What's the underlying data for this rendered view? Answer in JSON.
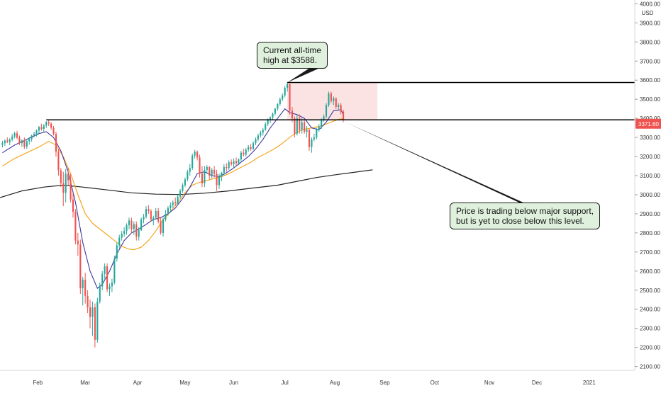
{
  "chart_data": {
    "type": "candlestick",
    "currency": "USD",
    "ylim": [
      2080,
      4020
    ],
    "y_ticks": [
      2100,
      2200,
      2300,
      2400,
      2500,
      2600,
      2700,
      2800,
      2900,
      3000,
      3100,
      3200,
      3300,
      3400,
      3500,
      3600,
      3700,
      3800,
      3900,
      4000
    ],
    "y_tick_labels": [
      "2100.00",
      "2200.00",
      "2300.00",
      "2400.00",
      "2500.00",
      "2600.00",
      "2700.00",
      "2800.00",
      "2900.00",
      "3000.00",
      "3100.00",
      "3200.00",
      "3300.00",
      "3400.00",
      "3500.00",
      "3600.00",
      "3700.00",
      "3800.00",
      "3900.00",
      "4000.00"
    ],
    "x_labels": [
      "Feb",
      "Mar",
      "Apr",
      "May",
      "Jun",
      "Jul",
      "Aug",
      "Sep",
      "Oct",
      "Nov",
      "Dec",
      "2021"
    ],
    "x_label_times": [
      21.5,
      41,
      62.5,
      82,
      102,
      123,
      143.5,
      164,
      184.5,
      207,
      226.5,
      248
    ],
    "xlim": [
      6,
      266.7
    ],
    "current_price": 3371.6,
    "current_price_label": "3371.60",
    "candles": [
      [
        7,
        3262,
        3282,
        3248,
        3270
      ],
      [
        8,
        3270,
        3290,
        3255,
        3284
      ],
      [
        9,
        3284,
        3300,
        3270,
        3276
      ],
      [
        10,
        3276,
        3296,
        3260,
        3290
      ],
      [
        11,
        3290,
        3318,
        3280,
        3305
      ],
      [
        12,
        3305,
        3330,
        3295,
        3322
      ],
      [
        13,
        3322,
        3335,
        3290,
        3298
      ],
      [
        14,
        3298,
        3310,
        3260,
        3270
      ],
      [
        15,
        3270,
        3290,
        3250,
        3284
      ],
      [
        16,
        3284,
        3300,
        3240,
        3252
      ],
      [
        17,
        3252,
        3286,
        3240,
        3280
      ],
      [
        18,
        3280,
        3300,
        3262,
        3292
      ],
      [
        19,
        3292,
        3315,
        3278,
        3310
      ],
      [
        20,
        3310,
        3330,
        3300,
        3318
      ],
      [
        21,
        3318,
        3342,
        3305,
        3336
      ],
      [
        22,
        3336,
        3360,
        3320,
        3354
      ],
      [
        23,
        3354,
        3372,
        3335,
        3345
      ],
      [
        24,
        3345,
        3370,
        3330,
        3362
      ],
      [
        25,
        3362,
        3386,
        3350,
        3380
      ],
      [
        26,
        3380,
        3394,
        3360,
        3372
      ],
      [
        27,
        3372,
        3380,
        3340,
        3350
      ],
      [
        28,
        3350,
        3360,
        3310,
        3318
      ],
      [
        29,
        3318,
        3330,
        3200,
        3225
      ],
      [
        30,
        3225,
        3240,
        3100,
        3128
      ],
      [
        31,
        3128,
        3140,
        3040,
        3060
      ],
      [
        32,
        3060,
        3120,
        2940,
        3010
      ],
      [
        33,
        3010,
        3135,
        2960,
        3110
      ],
      [
        34,
        3110,
        3140,
        3045,
        3075
      ],
      [
        35,
        3075,
        3110,
        2960,
        2975
      ],
      [
        36,
        2975,
        3010,
        2880,
        2910
      ],
      [
        37,
        2910,
        2925,
        2740,
        2760
      ],
      [
        38,
        2760,
        2800,
        2680,
        2740
      ],
      [
        39,
        2740,
        2765,
        2480,
        2510
      ],
      [
        40,
        2510,
        2570,
        2420,
        2555
      ],
      [
        41,
        2555,
        2590,
        2430,
        2470
      ],
      [
        42,
        2470,
        2500,
        2380,
        2410
      ],
      [
        43,
        2410,
        2450,
        2300,
        2360
      ],
      [
        44,
        2360,
        2440,
        2260,
        2410
      ],
      [
        45,
        2410,
        2430,
        2200,
        2240
      ],
      [
        46,
        2240,
        2460,
        2225,
        2440
      ],
      [
        47,
        2440,
        2540,
        2430,
        2520
      ],
      [
        48,
        2520,
        2600,
        2500,
        2585
      ],
      [
        49,
        2585,
        2640,
        2560,
        2625
      ],
      [
        50,
        2625,
        2640,
        2490,
        2505
      ],
      [
        51,
        2505,
        2535,
        2470,
        2520
      ],
      [
        52,
        2520,
        2560,
        2490,
        2540
      ],
      [
        53,
        2540,
        2680,
        2530,
        2665
      ],
      [
        54,
        2665,
        2750,
        2650,
        2735
      ],
      [
        55,
        2735,
        2790,
        2720,
        2775
      ],
      [
        56,
        2775,
        2810,
        2760,
        2795
      ],
      [
        57,
        2795,
        2830,
        2780,
        2810
      ],
      [
        58,
        2810,
        2850,
        2790,
        2840
      ],
      [
        59,
        2840,
        2880,
        2820,
        2865
      ],
      [
        60,
        2865,
        2880,
        2800,
        2820
      ],
      [
        61,
        2820,
        2860,
        2790,
        2845
      ],
      [
        62,
        2845,
        2860,
        2760,
        2780
      ],
      [
        63,
        2780,
        2830,
        2760,
        2815
      ],
      [
        64,
        2815,
        2880,
        2810,
        2870
      ],
      [
        65,
        2870,
        2900,
        2850,
        2885
      ],
      [
        66,
        2885,
        2940,
        2875,
        2925
      ],
      [
        67,
        2925,
        2945,
        2900,
        2915
      ],
      [
        68,
        2915,
        2925,
        2860,
        2870
      ],
      [
        69,
        2870,
        2890,
        2840,
        2880
      ],
      [
        70,
        2880,
        2930,
        2870,
        2915
      ],
      [
        71,
        2915,
        2930,
        2850,
        2860
      ],
      [
        72,
        2860,
        2880,
        2790,
        2800
      ],
      [
        73,
        2800,
        2880,
        2780,
        2870
      ],
      [
        74,
        2870,
        2920,
        2860,
        2900
      ],
      [
        75,
        2900,
        2940,
        2890,
        2930
      ],
      [
        76,
        2930,
        2960,
        2910,
        2945
      ],
      [
        77,
        2945,
        2970,
        2930,
        2960
      ],
      [
        78,
        2960,
        2985,
        2940,
        2955
      ],
      [
        79,
        2955,
        3000,
        2945,
        2990
      ],
      [
        80,
        2990,
        3030,
        2980,
        3020
      ],
      [
        81,
        3020,
        3060,
        3010,
        3050
      ],
      [
        82,
        3050,
        3090,
        3040,
        3080
      ],
      [
        83,
        3080,
        3130,
        3070,
        3120
      ],
      [
        84,
        3120,
        3160,
        3100,
        3140
      ],
      [
        85,
        3140,
        3215,
        3130,
        3205
      ],
      [
        86,
        3205,
        3235,
        3190,
        3225
      ],
      [
        87,
        3225,
        3232,
        3180,
        3195
      ],
      [
        88,
        3195,
        3210,
        3090,
        3110
      ],
      [
        89,
        3110,
        3150,
        3040,
        3060
      ],
      [
        90,
        3060,
        3150,
        3040,
        3130
      ],
      [
        91,
        3130,
        3155,
        3110,
        3145
      ],
      [
        92,
        3145,
        3150,
        3080,
        3100
      ],
      [
        93,
        3100,
        3140,
        3085,
        3130
      ],
      [
        94,
        3130,
        3150,
        3090,
        3110
      ],
      [
        95,
        3110,
        3130,
        3020,
        3050
      ],
      [
        96,
        3050,
        3110,
        3030,
        3095
      ],
      [
        97,
        3095,
        3120,
        3070,
        3115
      ],
      [
        98,
        3115,
        3160,
        3100,
        3145
      ],
      [
        99,
        3145,
        3165,
        3120,
        3140
      ],
      [
        100,
        3140,
        3180,
        3130,
        3170
      ],
      [
        101,
        3170,
        3185,
        3150,
        3160
      ],
      [
        102,
        3160,
        3190,
        3140,
        3175
      ],
      [
        103,
        3175,
        3195,
        3150,
        3165
      ],
      [
        104,
        3165,
        3190,
        3155,
        3185
      ],
      [
        105,
        3185,
        3230,
        3175,
        3220
      ],
      [
        106,
        3220,
        3240,
        3200,
        3210
      ],
      [
        107,
        3210,
        3245,
        3200,
        3236
      ],
      [
        108,
        3236,
        3260,
        3225,
        3250
      ],
      [
        109,
        3250,
        3265,
        3230,
        3240
      ],
      [
        110,
        3240,
        3280,
        3235,
        3270
      ],
      [
        111,
        3270,
        3300,
        3260,
        3290
      ],
      [
        112,
        3290,
        3320,
        3280,
        3310
      ],
      [
        113,
        3310,
        3335,
        3300,
        3325
      ],
      [
        114,
        3325,
        3350,
        3310,
        3340
      ],
      [
        115,
        3340,
        3380,
        3335,
        3370
      ],
      [
        116,
        3370,
        3400,
        3360,
        3390
      ],
      [
        117,
        3390,
        3410,
        3375,
        3405
      ],
      [
        118,
        3405,
        3430,
        3390,
        3425
      ],
      [
        119,
        3425,
        3455,
        3415,
        3450
      ],
      [
        120,
        3450,
        3480,
        3440,
        3475
      ],
      [
        121,
        3475,
        3510,
        3465,
        3500
      ],
      [
        122,
        3500,
        3530,
        3490,
        3520
      ],
      [
        123,
        3520,
        3570,
        3510,
        3560
      ],
      [
        124,
        3560,
        3588,
        3540,
        3580
      ],
      [
        125,
        3580,
        3582,
        3420,
        3440
      ],
      [
        126,
        3440,
        3460,
        3380,
        3400
      ],
      [
        127,
        3400,
        3410,
        3300,
        3320
      ],
      [
        128,
        3320,
        3420,
        3310,
        3400
      ],
      [
        129,
        3400,
        3420,
        3320,
        3340
      ],
      [
        130,
        3340,
        3400,
        3320,
        3380
      ],
      [
        131,
        3380,
        3390,
        3320,
        3330
      ],
      [
        132,
        3330,
        3360,
        3300,
        3340
      ],
      [
        133,
        3340,
        3345,
        3230,
        3250
      ],
      [
        134,
        3250,
        3300,
        3220,
        3290
      ],
      [
        135,
        3290,
        3320,
        3280,
        3300
      ],
      [
        136,
        3300,
        3350,
        3290,
        3340
      ],
      [
        137,
        3340,
        3370,
        3330,
        3355
      ],
      [
        138,
        3355,
        3400,
        3345,
        3390
      ],
      [
        139,
        3390,
        3420,
        3380,
        3410
      ],
      [
        140,
        3410,
        3480,
        3400,
        3470
      ],
      [
        141,
        3470,
        3540,
        3460,
        3530
      ],
      [
        142,
        3530,
        3540,
        3480,
        3490
      ],
      [
        143,
        3490,
        3515,
        3470,
        3505
      ],
      [
        144,
        3505,
        3510,
        3450,
        3460
      ],
      [
        145,
        3460,
        3480,
        3440,
        3470
      ],
      [
        146,
        3470,
        3480,
        3420,
        3435
      ],
      [
        147,
        3435,
        3445,
        3380,
        3395
      ]
    ],
    "ma_blue": [
      [
        7,
        3220
      ],
      [
        12,
        3260
      ],
      [
        17,
        3290
      ],
      [
        22,
        3320
      ],
      [
        25,
        3330
      ],
      [
        28,
        3300
      ],
      [
        31,
        3230
      ],
      [
        34,
        3120
      ],
      [
        37,
        2960
      ],
      [
        40,
        2750
      ],
      [
        43,
        2600
      ],
      [
        46,
        2510
      ],
      [
        48,
        2530
      ],
      [
        51,
        2600
      ],
      [
        54,
        2690
      ],
      [
        57,
        2760
      ],
      [
        60,
        2800
      ],
      [
        63,
        2820
      ],
      [
        66,
        2845
      ],
      [
        69,
        2870
      ],
      [
        72,
        2880
      ],
      [
        75,
        2900
      ],
      [
        78,
        2930
      ],
      [
        81,
        2980
      ],
      [
        84,
        3040
      ],
      [
        87,
        3110
      ],
      [
        90,
        3120
      ],
      [
        93,
        3100
      ],
      [
        96,
        3095
      ],
      [
        99,
        3115
      ],
      [
        102,
        3140
      ],
      [
        105,
        3170
      ],
      [
        108,
        3200
      ],
      [
        111,
        3240
      ],
      [
        114,
        3290
      ],
      [
        117,
        3350
      ],
      [
        120,
        3400
      ],
      [
        123,
        3450
      ],
      [
        125,
        3430
      ],
      [
        128,
        3420
      ],
      [
        131,
        3400
      ],
      [
        134,
        3350
      ],
      [
        137,
        3340
      ],
      [
        140,
        3380
      ],
      [
        143,
        3440
      ],
      [
        146,
        3445
      ],
      [
        147,
        3420
      ]
    ],
    "ma_orange": [
      [
        7,
        3150
      ],
      [
        12,
        3190
      ],
      [
        17,
        3220
      ],
      [
        22,
        3250
      ],
      [
        26,
        3280
      ],
      [
        29,
        3260
      ],
      [
        32,
        3200
      ],
      [
        35,
        3110
      ],
      [
        38,
        3000
      ],
      [
        41,
        2900
      ],
      [
        44,
        2850
      ],
      [
        47,
        2820
      ],
      [
        50,
        2790
      ],
      [
        53,
        2760
      ],
      [
        56,
        2730
      ],
      [
        59,
        2715
      ],
      [
        61,
        2712
      ],
      [
        64,
        2725
      ],
      [
        67,
        2760
      ],
      [
        70,
        2810
      ],
      [
        73,
        2870
      ],
      [
        76,
        2910
      ],
      [
        79,
        2960
      ],
      [
        82,
        3010
      ],
      [
        85,
        3050
      ],
      [
        88,
        3065
      ],
      [
        91,
        3075
      ],
      [
        94,
        3085
      ],
      [
        97,
        3095
      ],
      [
        100,
        3110
      ],
      [
        103,
        3130
      ],
      [
        106,
        3150
      ],
      [
        109,
        3170
      ],
      [
        112,
        3195
      ],
      [
        115,
        3215
      ],
      [
        118,
        3235
      ],
      [
        121,
        3260
      ],
      [
        124,
        3290
      ],
      [
        127,
        3320
      ],
      [
        130,
        3340
      ],
      [
        134,
        3350
      ],
      [
        138,
        3360
      ],
      [
        142,
        3380
      ],
      [
        145,
        3395
      ],
      [
        147,
        3398
      ]
    ],
    "ma_black": [
      [
        6,
        2985
      ],
      [
        15,
        3020
      ],
      [
        24,
        3040
      ],
      [
        32,
        3050
      ],
      [
        40,
        3040
      ],
      [
        50,
        3025
      ],
      [
        60,
        3010
      ],
      [
        70,
        3003
      ],
      [
        80,
        3001
      ],
      [
        90,
        3008
      ],
      [
        100,
        3020
      ],
      [
        110,
        3035
      ],
      [
        120,
        3050
      ],
      [
        128,
        3070
      ],
      [
        136,
        3090
      ],
      [
        144,
        3105
      ],
      [
        153,
        3120
      ],
      [
        159,
        3130
      ]
    ],
    "support_level": 3392,
    "ath_level": 3588,
    "supply_zone": {
      "x1": 124,
      "x2": 161,
      "y_low": 3395,
      "y_high": 3588
    },
    "annotations": [
      {
        "lines": [
          "Current all-time",
          "high at $3588."
        ]
      },
      {
        "lines": [
          "Price is trading below major support,",
          "but is yet to close below this level."
        ]
      }
    ],
    "colors": {
      "up": "#26a69a",
      "down": "#ef5350",
      "ma_blue": "#3f37a0",
      "ma_orange": "#f5a623",
      "ma_black": "#222222",
      "zone": "#fbe3e3",
      "annot_bg": "#dff1dd",
      "price_tag": "#ef5350"
    }
  }
}
